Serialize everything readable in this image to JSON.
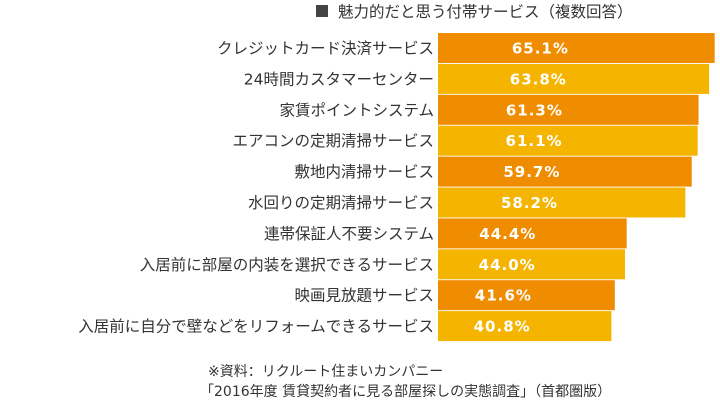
{
  "chart_data": {
    "type": "bar",
    "orientation": "horizontal",
    "title": "魅力的だと思う付帯サービス（複数回答）",
    "categories": [
      "クレジットカード決済サービス",
      "24時間カスタマーセンター",
      "家賃ポイントシステム",
      "エアコンの定期清掃サービス",
      "敷地内清掃サービス",
      "水回りの定期清掃サービス",
      "連帯保証人不要システム",
      "入居前に部屋の内装を選択できるサービス",
      "映画見放題サービス",
      "入居前に自分で壁などをリフォームできるサービス"
    ],
    "values": [
      65.1,
      63.8,
      61.3,
      61.1,
      59.7,
      58.2,
      44.4,
      44.0,
      41.6,
      40.8
    ],
    "value_labels": [
      "65.1%",
      "63.8%",
      "61.3%",
      "61.1%",
      "59.7%",
      "58.2%",
      "44.4%",
      "44.0%",
      "41.6%",
      "40.8%"
    ],
    "unit": "%",
    "grid": false,
    "colors": [
      "#f08c00",
      "#f5b400"
    ],
    "source_line1": "※資料：リクルート住まいカンパニー",
    "source_line2": "「2016年度 賃貸契約者に見る部屋探しの実態調査」（首都圏版）"
  }
}
